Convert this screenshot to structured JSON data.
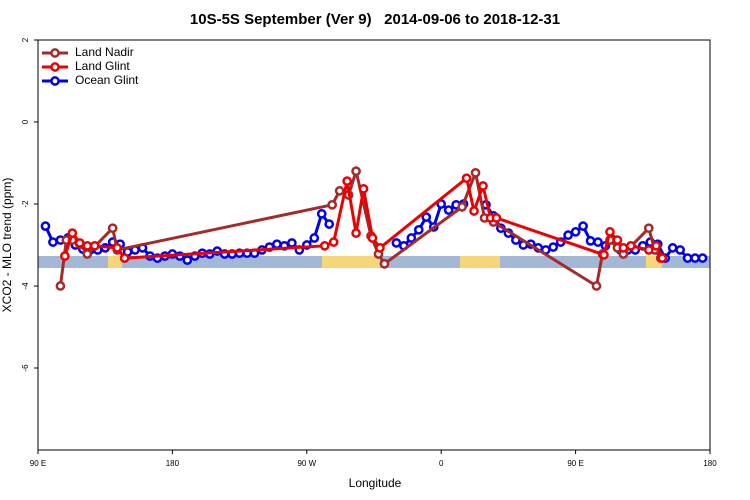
{
  "chart_data": {
    "type": "line",
    "title": "10S-5S September (Ver 9)   2014-09-06 to 2018-12-31",
    "x_label": "Longitude",
    "y_label": "XCO2 - MLO trend (ppm)",
    "xlim": [
      -270,
      180
    ],
    "xticks": [
      {
        "value": -270,
        "label": "90 E"
      },
      {
        "value": -180,
        "label": "180"
      },
      {
        "value": -90,
        "label": "90 W"
      },
      0,
      {
        "value": 90,
        "label": "90 E"
      },
      180
    ],
    "ylim": [
      -8,
      2
    ],
    "yticks": [
      -6,
      -4,
      -2,
      0,
      2
    ],
    "legend": "top-left",
    "series": [
      {
        "name": "Land Nadir",
        "color": "#a52a2a",
        "x": [
          -255,
          -251,
          -247,
          -242,
          -237,
          -220,
          -217,
          -73,
          -68,
          -62,
          -57,
          -47,
          -42,
          -38,
          14,
          23,
          29,
          35,
          104,
          108,
          113,
          118,
          122,
          139,
          143,
          147
        ],
        "values": [
          -4.0,
          -2.88,
          -2.88,
          -2.98,
          -3.22,
          -2.59,
          -3.12,
          -2.02,
          -1.68,
          -1.78,
          -1.2,
          -2.78,
          -3.22,
          -3.46,
          -2.07,
          -1.24,
          -2.34,
          -2.44,
          -4.0,
          -3.22,
          -2.88,
          -3.07,
          -3.22,
          -2.59,
          -3.12,
          -3.32
        ]
      },
      {
        "name": "Land Glint",
        "color": "#ee0000",
        "x": [
          -252,
          -247,
          -242,
          -237,
          -232,
          -217,
          -212,
          -78,
          -72,
          -63,
          -57,
          -52,
          -46,
          -41,
          17,
          22,
          28,
          33,
          37,
          109,
          113,
          118,
          122,
          127,
          139,
          144,
          148
        ],
        "values": [
          -3.27,
          -2.71,
          -2.95,
          -3.02,
          -3.02,
          -3.07,
          -3.32,
          -3.02,
          -2.93,
          -1.44,
          -2.71,
          -1.63,
          -2.83,
          -3.07,
          -1.37,
          -2.17,
          -1.56,
          -2.34,
          -2.34,
          -3.24,
          -2.68,
          -2.88,
          -3.07,
          -3.02,
          -3.12,
          -3.02,
          -3.32
        ]
      },
      {
        "name": "Ocean Glint",
        "color": "#0000ee",
        "x": [
          -265,
          -260,
          -255,
          -250,
          -245,
          -240,
          -235,
          -230,
          -225,
          -220,
          -215,
          -210,
          -205,
          -200,
          -195,
          -190,
          -185,
          -180,
          -175,
          -170,
          -165,
          -160,
          -155,
          -150,
          -145,
          -140,
          -135,
          -130,
          -125,
          -120,
          -115,
          -110,
          -105,
          -100,
          -95,
          -90,
          -85,
          -80,
          -75,
          -70,
          -65,
          -60,
          -55,
          -50,
          -45,
          -40,
          -35,
          -30,
          -25,
          -20,
          -15,
          -10,
          -5,
          0,
          5,
          10,
          15,
          20,
          25,
          30,
          35,
          40,
          45,
          50,
          55,
          60,
          65,
          70,
          75,
          80,
          85,
          90,
          95,
          100,
          105,
          110,
          115,
          120,
          125,
          130,
          135,
          140,
          145,
          150,
          155,
          160,
          165,
          170,
          175
        ],
        "values": [
          -2.54,
          -2.93,
          -2.88,
          -2.83,
          -3.0,
          -3.1,
          -3.12,
          -3.12,
          -3.07,
          -2.93,
          -2.98,
          -3.17,
          -3.12,
          -3.07,
          -3.27,
          -3.32,
          -3.27,
          -3.22,
          -3.27,
          -3.37,
          -3.27,
          -3.2,
          -3.22,
          -3.15,
          -3.22,
          -3.22,
          -3.2,
          -3.2,
          -3.2,
          -3.12,
          -3.05,
          -2.98,
          -3.02,
          -2.95,
          -3.12,
          -3.0,
          -2.83,
          -2.24,
          -2.49,
          null,
          null,
          null,
          null,
          null,
          null,
          null,
          null,
          -2.95,
          -3.02,
          -2.83,
          -2.63,
          -2.32,
          -2.56,
          -2.0,
          -2.15,
          -2.02,
          -2.0,
          null,
          null,
          -2.02,
          -2.29,
          -2.59,
          -2.71,
          -2.88,
          -3.0,
          -2.98,
          -3.07,
          -3.12,
          -3.05,
          -2.93,
          -2.76,
          -2.68,
          -2.54,
          -2.9,
          -2.93,
          -3.02,
          -2.88,
          -3.12,
          -3.12,
          -3.12,
          -3.02,
          -2.93,
          -2.98,
          -3.32,
          -3.07,
          -3.12,
          -3.32,
          -3.32,
          -3.32
        ]
      }
    ]
  }
}
